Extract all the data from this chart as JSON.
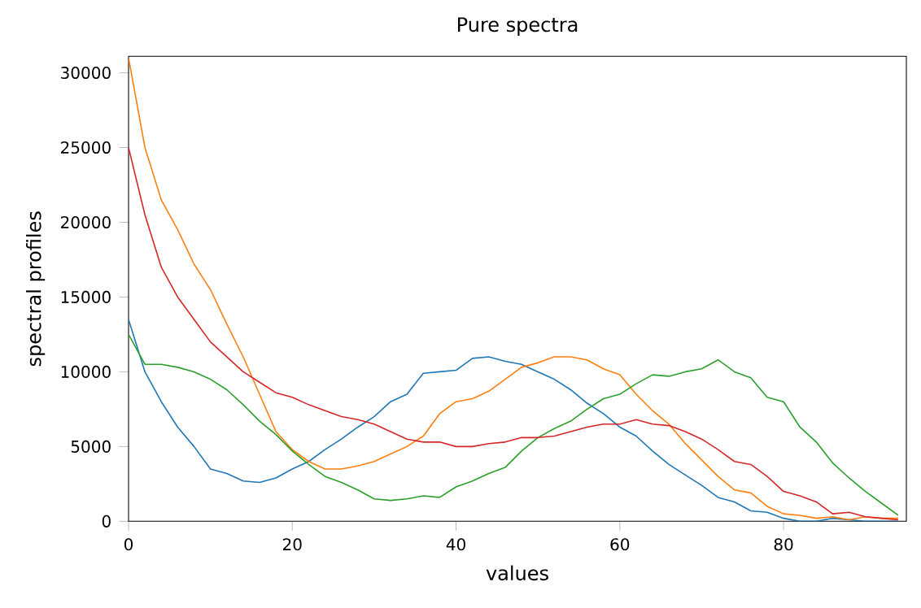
{
  "chart_data": {
    "type": "line",
    "title": "Pure spectra",
    "xlabel": "values",
    "ylabel": "spectral profiles",
    "x": [
      0,
      2,
      4,
      6,
      8,
      10,
      12,
      14,
      16,
      18,
      20,
      22,
      24,
      26,
      28,
      30,
      32,
      34,
      36,
      38,
      40,
      42,
      44,
      46,
      48,
      50,
      52,
      54,
      56,
      58,
      60,
      62,
      64,
      66,
      68,
      70,
      72,
      74,
      76,
      78,
      80,
      82,
      84,
      86,
      88,
      90,
      92,
      94
    ],
    "series": [
      {
        "color": "#1f77b4",
        "values": [
          13500,
          10000,
          8000,
          6300,
          5000,
          3500,
          3200,
          2700,
          2600,
          2900,
          3500,
          4000,
          4800,
          5500,
          6300,
          7000,
          8000,
          8500,
          9900,
          10000,
          10100,
          10900,
          11000,
          10700,
          10500,
          10000,
          9500,
          8800,
          7900,
          7200,
          6300,
          5700,
          4700,
          3800,
          3100,
          2400,
          1600,
          1300,
          700,
          600,
          200,
          0,
          0,
          200,
          100,
          0,
          0,
          0
        ]
      },
      {
        "color": "#ff7f0e",
        "values": [
          31000,
          25000,
          21500,
          19500,
          17200,
          15500,
          13200,
          11000,
          8500,
          6000,
          4800,
          4000,
          3500,
          3500,
          3700,
          4000,
          4500,
          5000,
          5700,
          7200,
          8000,
          8200,
          8700,
          9500,
          10300,
          10600,
          11000,
          11000,
          10800,
          10200,
          9800,
          8500,
          7400,
          6500,
          5200,
          4100,
          3000,
          2100,
          1900,
          1000,
          500,
          400,
          200,
          300,
          100,
          300,
          200,
          200
        ]
      },
      {
        "color": "#2ca02c",
        "values": [
          12500,
          10500,
          10500,
          10300,
          10000,
          9500,
          8800,
          7800,
          6700,
          5800,
          4700,
          3800,
          3000,
          2600,
          2100,
          1500,
          1400,
          1500,
          1700,
          1600,
          2300,
          2700,
          3200,
          3600,
          4700,
          5600,
          6200,
          6700,
          7500,
          8200,
          8500,
          9200,
          9800,
          9700,
          10000,
          10200,
          10800,
          10000,
          9600,
          8300,
          8000,
          6300,
          5300,
          3900,
          2900,
          2000,
          1200,
          400
        ]
      },
      {
        "color": "#d62728",
        "values": [
          25000,
          20500,
          17000,
          15000,
          13500,
          12000,
          11000,
          10000,
          9300,
          8600,
          8300,
          7800,
          7400,
          7000,
          6800,
          6500,
          6000,
          5500,
          5300,
          5300,
          5000,
          5000,
          5200,
          5300,
          5600,
          5600,
          5700,
          6000,
          6300,
          6500,
          6500,
          6800,
          6500,
          6400,
          6000,
          5500,
          4800,
          4000,
          3800,
          3000,
          2000,
          1700,
          1300,
          500,
          600,
          300,
          200,
          100
        ]
      }
    ],
    "xlim": [
      0,
      95
    ],
    "ylim": [
      0,
      31100
    ],
    "xticks": [
      0,
      20,
      40,
      60,
      80
    ],
    "yticks": [
      0,
      5000,
      10000,
      15000,
      20000,
      25000,
      30000
    ],
    "marker": "none",
    "line_style": "solid"
  }
}
